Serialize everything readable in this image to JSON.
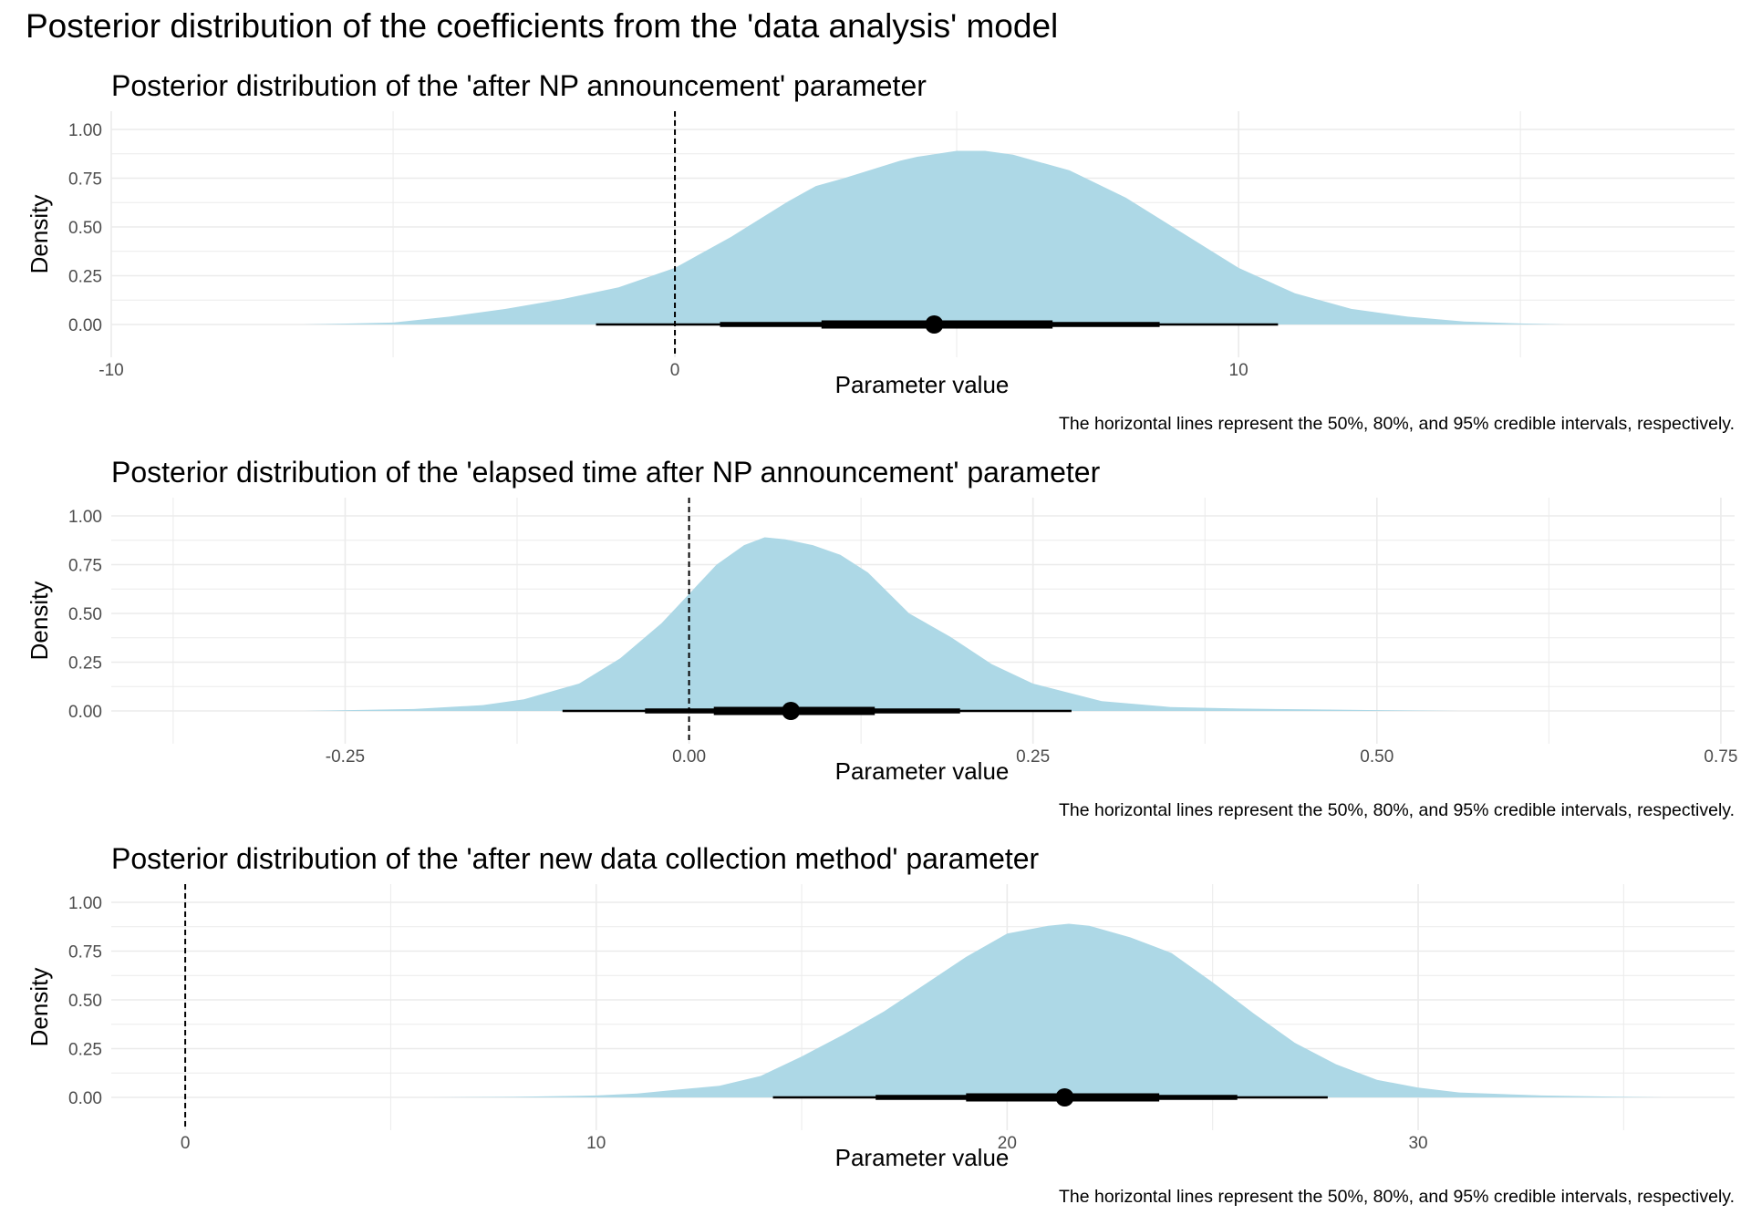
{
  "title": "Posterior distribution of the coefficients from the 'data analysis' model",
  "caption": "The horizontal lines represent the 50%, 80%, and 95% credible intervals, respectively.",
  "colors": {
    "fill": "#add8e6",
    "interval": "#000000",
    "grid": "#ebebeb",
    "reference": "#000000"
  },
  "chart_data": [
    {
      "type": "area",
      "title": "Posterior distribution of the 'after NP announcement' parameter",
      "xlabel": "Parameter value",
      "ylabel": "Density",
      "xlim": [
        -10,
        18.8
      ],
      "ylim": [
        0,
        1
      ],
      "xticks": [
        -10,
        0,
        10
      ],
      "xtick_labels": [
        "-10",
        "0",
        "10"
      ],
      "yticks": [
        0,
        0.25,
        0.5,
        0.75,
        1
      ],
      "ytick_labels": [
        "0.00",
        "0.25",
        "0.50",
        "0.75",
        "1.00"
      ],
      "reference_line": 0,
      "density": {
        "x": [
          -6.6,
          -5,
          -4,
          -3,
          -2,
          -1,
          0,
          1,
          2,
          2.5,
          3,
          4,
          4.3,
          5,
          5.5,
          6,
          7,
          8,
          9,
          10,
          11,
          12,
          13,
          14,
          15,
          15.8
        ],
        "y": [
          0,
          0.01,
          0.04,
          0.08,
          0.13,
          0.19,
          0.29,
          0.45,
          0.63,
          0.71,
          0.75,
          0.84,
          0.86,
          0.89,
          0.89,
          0.87,
          0.79,
          0.65,
          0.47,
          0.29,
          0.16,
          0.08,
          0.04,
          0.015,
          0.005,
          0
        ]
      },
      "point_estimate": 4.6,
      "intervals": [
        {
          "level": "50%",
          "lower": 2.6,
          "upper": 6.7
        },
        {
          "level": "80%",
          "lower": 0.8,
          "upper": 8.6
        },
        {
          "level": "95%",
          "lower": -1.4,
          "upper": 10.7
        }
      ]
    },
    {
      "type": "area",
      "title": "Posterior distribution of the 'elapsed time after NP announcement' parameter",
      "xlabel": "Parameter value",
      "ylabel": "Density",
      "xlim": [
        -0.42,
        0.76
      ],
      "ylim": [
        0,
        1
      ],
      "xticks": [
        -0.25,
        0,
        0.25,
        0.5,
        0.75
      ],
      "xtick_labels": [
        "-0.25",
        "0.00",
        "0.25",
        "0.50",
        "0.75"
      ],
      "yticks": [
        0,
        0.25,
        0.5,
        0.75,
        1
      ],
      "ytick_labels": [
        "0.00",
        "0.25",
        "0.50",
        "0.75",
        "1.00"
      ],
      "reference_line": 0,
      "density": {
        "x": [
          -0.28,
          -0.2,
          -0.15,
          -0.12,
          -0.08,
          -0.05,
          -0.02,
          0,
          0.02,
          0.04,
          0.055,
          0.07,
          0.09,
          0.11,
          0.13,
          0.16,
          0.19,
          0.22,
          0.25,
          0.3,
          0.35,
          0.4,
          0.45,
          0.5,
          0.56
        ],
        "y": [
          0,
          0.01,
          0.03,
          0.06,
          0.14,
          0.27,
          0.45,
          0.6,
          0.75,
          0.85,
          0.89,
          0.88,
          0.85,
          0.8,
          0.71,
          0.5,
          0.38,
          0.24,
          0.14,
          0.05,
          0.02,
          0.012,
          0.008,
          0.004,
          0
        ]
      },
      "point_estimate": 0.074,
      "intervals": [
        {
          "level": "50%",
          "lower": 0.018,
          "upper": 0.135
        },
        {
          "level": "80%",
          "lower": -0.032,
          "upper": 0.197
        },
        {
          "level": "95%",
          "lower": -0.092,
          "upper": 0.278
        }
      ]
    },
    {
      "type": "area",
      "title": "Posterior distribution of the 'after new data collection method' parameter",
      "xlabel": "Parameter value",
      "ylabel": "Density",
      "xlim": [
        -1.8,
        37.7
      ],
      "ylim": [
        0,
        1
      ],
      "xticks": [
        0,
        10,
        20,
        30
      ],
      "xtick_labels": [
        "0",
        "10",
        "20",
        "30"
      ],
      "yticks": [
        0,
        0.25,
        0.5,
        0.75,
        1
      ],
      "ytick_labels": [
        "0.00",
        "0.25",
        "0.50",
        "0.75",
        "1.00"
      ],
      "reference_line": 0,
      "density": {
        "x": [
          6,
          8,
          10,
          11,
          12,
          13,
          14,
          15,
          16,
          17,
          18,
          19,
          20,
          21,
          21.5,
          22,
          23,
          24,
          25,
          26,
          27,
          28,
          29,
          30,
          31,
          33,
          35,
          36
        ],
        "y": [
          0,
          0.003,
          0.01,
          0.02,
          0.04,
          0.06,
          0.11,
          0.21,
          0.32,
          0.44,
          0.58,
          0.72,
          0.84,
          0.88,
          0.89,
          0.88,
          0.82,
          0.74,
          0.59,
          0.43,
          0.28,
          0.17,
          0.09,
          0.05,
          0.025,
          0.01,
          0.003,
          0
        ]
      },
      "point_estimate": 21.4,
      "intervals": [
        {
          "level": "50%",
          "lower": 19,
          "upper": 23.7
        },
        {
          "level": "80%",
          "lower": 16.8,
          "upper": 25.6
        },
        {
          "level": "95%",
          "lower": 14.3,
          "upper": 27.8
        }
      ]
    }
  ]
}
